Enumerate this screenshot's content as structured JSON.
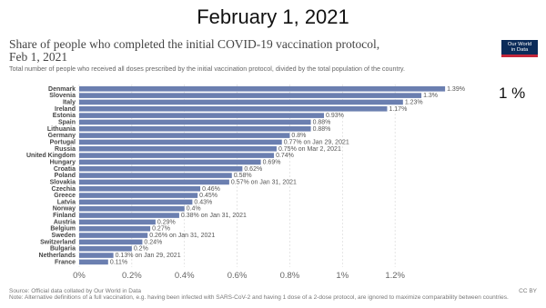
{
  "slide": {
    "title": "February 1, 2021",
    "overlay_note": "1 %"
  },
  "logo": {
    "line1": "Our World",
    "line2": "in Data",
    "colors": {
      "background": "#0b2b59",
      "stripe": "#c4263a"
    }
  },
  "chart_data": {
    "type": "bar",
    "orientation": "horizontal",
    "title": "Share of people who completed the initial COVID-19 vaccination protocol,",
    "title_line2": "Feb 1, 2021",
    "subtitle": "Total number of people who received all doses prescribed by the initial vaccination protocol, divided by the total population of the country.",
    "bar_color": "#6b7fb0",
    "grid": true,
    "xlim": [
      0,
      1.4
    ],
    "x_ticks": [
      {
        "value": 0,
        "label": "0%"
      },
      {
        "value": 0.2,
        "label": "0.2%"
      },
      {
        "value": 0.4,
        "label": "0.4%"
      },
      {
        "value": 0.6,
        "label": "0.6%"
      },
      {
        "value": 0.8,
        "label": "0.8%"
      },
      {
        "value": 1.0,
        "label": "1%"
      },
      {
        "value": 1.2,
        "label": "1.2%"
      }
    ],
    "categories": [
      "Denmark",
      "Slovenia",
      "Italy",
      "Ireland",
      "Estonia",
      "Spain",
      "Lithuania",
      "Germany",
      "Portugal",
      "Russia",
      "United Kingdom",
      "Hungary",
      "Croatia",
      "Poland",
      "Slovakia",
      "Czechia",
      "Greece",
      "Latvia",
      "Norway",
      "Finland",
      "Austria",
      "Belgium",
      "Sweden",
      "Switzerland",
      "Bulgaria",
      "Netherlands",
      "France"
    ],
    "values": [
      1.39,
      1.3,
      1.23,
      1.17,
      0.93,
      0.88,
      0.88,
      0.8,
      0.77,
      0.75,
      0.74,
      0.69,
      0.62,
      0.58,
      0.57,
      0.46,
      0.45,
      0.43,
      0.4,
      0.38,
      0.29,
      0.27,
      0.26,
      0.24,
      0.2,
      0.13,
      0.11
    ],
    "value_labels": [
      "1.39%",
      "1.3%",
      "1.23%",
      "1.17%",
      "0.93%",
      "0.88%",
      "0.88%",
      "0.8%",
      "0.77%",
      "0.75%",
      "0.74%",
      "0.69%",
      "0.62%",
      "0.58%",
      "0.57%",
      "0.46%",
      "0.45%",
      "0.43%",
      "0.4%",
      "0.38%",
      "0.29%",
      "0.27%",
      "0.26%",
      "0.24%",
      "0.2%",
      "0.13%",
      "0.11%"
    ],
    "annotations": [
      "",
      "",
      "",
      "",
      "",
      "",
      "",
      "",
      "on Jan 29, 2021",
      "on Mar 2, 2021",
      "",
      "",
      "",
      "",
      "on Jan 31, 2021",
      "",
      "",
      "",
      "",
      "on Jan 31, 2021",
      "",
      "",
      "on Jan 31, 2021",
      "",
      "",
      "on Jan 29, 2021",
      ""
    ]
  },
  "footer": {
    "source": "Source: Official data collated by Our World in Data",
    "license": "CC BY",
    "note": "Note: Alternative definitions of a full vaccination, e.g. having been infected with SARS-CoV-2 and having 1 dose of a 2-dose protocol, are ignored to maximize comparability between countries."
  }
}
